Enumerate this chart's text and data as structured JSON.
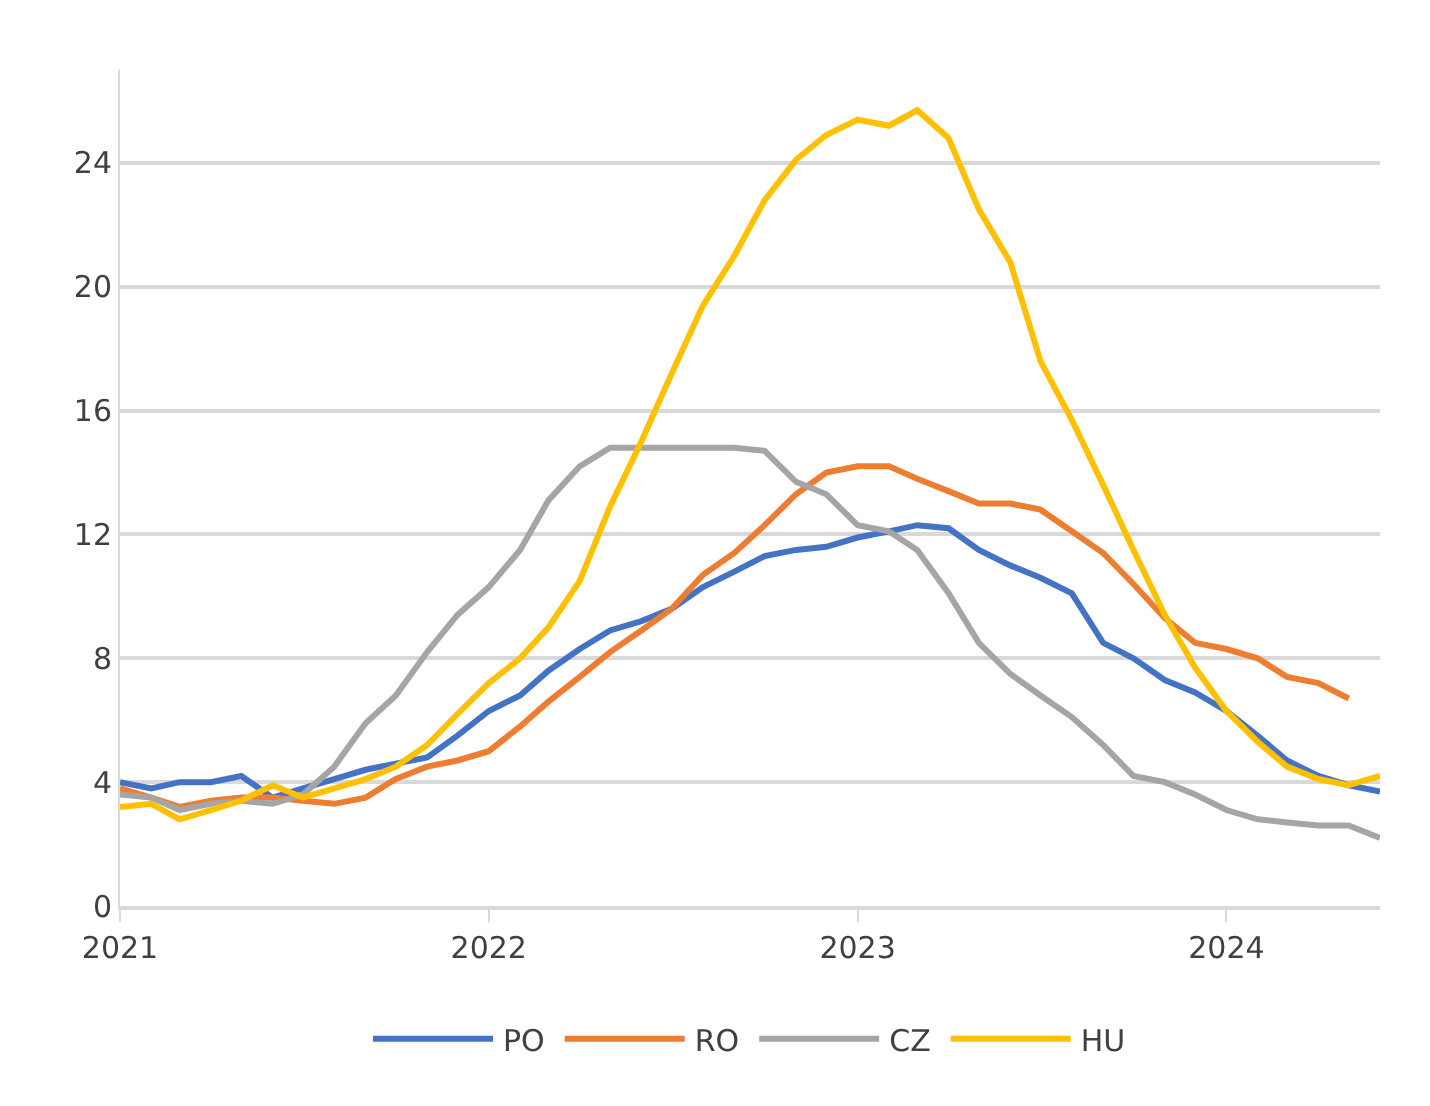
{
  "chart_data": {
    "type": "line",
    "x": [
      "2021-01",
      "2021-02",
      "2021-03",
      "2021-04",
      "2021-05",
      "2021-06",
      "2021-07",
      "2021-08",
      "2021-09",
      "2021-10",
      "2021-11",
      "2021-12",
      "2022-01",
      "2022-02",
      "2022-03",
      "2022-04",
      "2022-05",
      "2022-06",
      "2022-07",
      "2022-08",
      "2022-09",
      "2022-10",
      "2022-11",
      "2022-12",
      "2023-01",
      "2023-02",
      "2023-03",
      "2023-04",
      "2023-05",
      "2023-06",
      "2023-07",
      "2023-08",
      "2023-09",
      "2023-10",
      "2023-11",
      "2023-12",
      "2024-01",
      "2024-02",
      "2024-03",
      "2024-04",
      "2024-05",
      "2024-06"
    ],
    "series": [
      {
        "name": "PO",
        "color": "#4472c4",
        "values": [
          4.0,
          3.8,
          4.0,
          4.0,
          4.2,
          3.5,
          3.8,
          4.1,
          4.4,
          4.6,
          4.8,
          5.5,
          6.3,
          6.8,
          7.6,
          8.3,
          8.9,
          9.2,
          9.6,
          10.3,
          10.8,
          11.3,
          11.5,
          11.6,
          11.9,
          12.1,
          12.3,
          12.2,
          11.5,
          11.0,
          10.6,
          10.1,
          8.5,
          8.0,
          7.3,
          6.9,
          6.3,
          5.5,
          4.7,
          4.2,
          3.9,
          3.7
        ]
      },
      {
        "name": "RO",
        "color": "#ed7d31",
        "values": [
          3.8,
          3.5,
          3.2,
          3.4,
          3.5,
          3.5,
          3.4,
          3.3,
          3.5,
          4.1,
          4.5,
          4.7,
          5.0,
          5.8,
          6.6,
          7.4,
          8.2,
          8.9,
          9.6,
          10.7,
          11.4,
          12.3,
          13.3,
          14.0,
          14.2,
          14.2,
          13.8,
          13.4,
          13.0,
          13.0,
          12.8,
          12.1,
          11.4,
          10.4,
          9.3,
          8.5,
          8.3,
          8.0,
          7.4,
          7.2,
          6.7,
          null
        ]
      },
      {
        "name": "CZ",
        "color": "#a5a5a5",
        "values": [
          3.6,
          3.5,
          3.1,
          3.3,
          3.4,
          3.3,
          3.6,
          4.5,
          5.9,
          6.8,
          8.2,
          9.4,
          10.3,
          11.5,
          13.1,
          14.2,
          14.8,
          14.8,
          14.8,
          14.8,
          14.8,
          14.7,
          13.7,
          13.3,
          12.3,
          12.1,
          11.5,
          10.1,
          8.5,
          7.5,
          6.8,
          6.1,
          5.2,
          4.2,
          4.0,
          3.6,
          3.1,
          2.8,
          2.7,
          2.6,
          2.6,
          2.2
        ]
      },
      {
        "name": "HU",
        "color": "#ffc000",
        "values": [
          3.2,
          3.3,
          2.8,
          3.1,
          3.4,
          3.9,
          3.5,
          3.8,
          4.1,
          4.5,
          5.2,
          6.2,
          7.2,
          8.0,
          9.0,
          10.5,
          12.9,
          15.0,
          17.2,
          19.4,
          21.0,
          22.8,
          24.1,
          24.9,
          25.4,
          25.2,
          25.7,
          24.8,
          22.5,
          20.8,
          17.6,
          15.7,
          13.6,
          11.5,
          9.4,
          7.7,
          6.3,
          5.3,
          4.5,
          4.1,
          3.9,
          4.2
        ]
      }
    ],
    "xlim": [
      "2021-01",
      "2024-06"
    ],
    "xticks": [
      "2021",
      "2022",
      "2023",
      "2024"
    ],
    "ylim": [
      0,
      27
    ],
    "yticks": [
      0,
      4,
      8,
      12,
      16,
      20,
      24
    ],
    "grid": "y",
    "legend": "bottom",
    "marker": "none",
    "line_style": "solid"
  }
}
